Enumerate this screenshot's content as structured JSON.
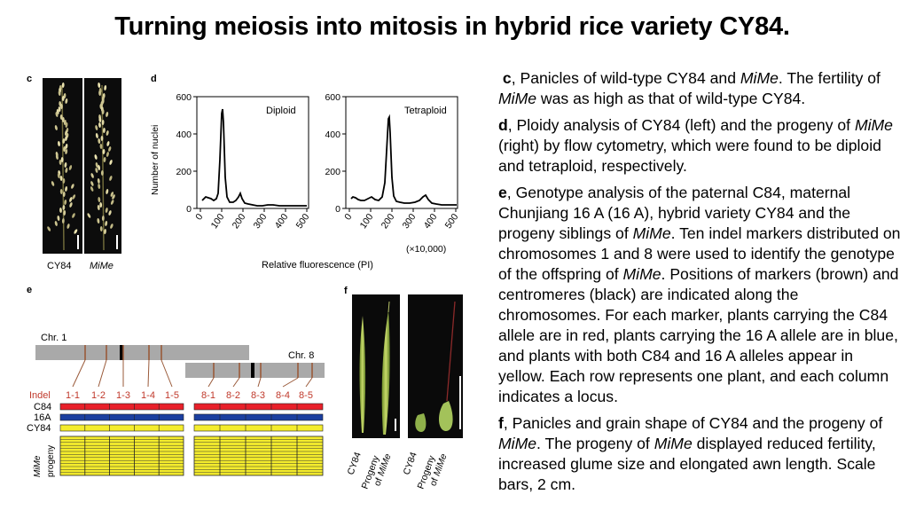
{
  "title": "Turning meiosis into mitosis in hybrid rice variety CY84.",
  "panel_c": {
    "letter": "c",
    "labels": [
      "CY84",
      "MiMe"
    ]
  },
  "panel_d": {
    "letter": "d",
    "ylabel": "Number of nuclei",
    "xlabel": "Relative fluorescence (PI)",
    "x_unit": "(×10,000)",
    "left_title": "Diploid",
    "right_title": "Tetraploid",
    "y_ticks": [
      "0",
      "200",
      "400",
      "600"
    ],
    "x_ticks": [
      "0",
      "100",
      "200",
      "300",
      "400",
      "500"
    ]
  },
  "panel_e": {
    "letter": "e",
    "chr1": "Chr. 1",
    "chr8": "Chr. 8",
    "indel_label": "Indel",
    "markers_chr1": [
      "1-1",
      "1-2",
      "1-3",
      "1-4",
      "1-5"
    ],
    "markers_chr8": [
      "8-1",
      "8-2",
      "8-3",
      "8-4",
      "8-5"
    ],
    "rows": [
      "C84",
      "16A",
      "CY84"
    ],
    "progeny_label_1": "MiMe",
    "progeny_label_2": "progeny",
    "colors": {
      "c84": "#e8202a",
      "a16": "#1b3fa0",
      "cy84": "#f4ec2c",
      "marker": "#9a5a3a",
      "chromosome": "#a9a9a9"
    }
  },
  "panel_f": {
    "letter": "f",
    "labels": [
      {
        "l1": "CY84",
        "l2": "",
        "l3": ""
      },
      {
        "l1": "Progeny",
        "l2": "of",
        "l3": "MiMe"
      },
      {
        "l1": "CY84",
        "l2": "",
        "l3": ""
      },
      {
        "l1": "Progeny",
        "l2": "of",
        "l3": "MiMe"
      }
    ]
  },
  "caption": {
    "c": {
      "letter": "c",
      "t1": ", Panicles of wild-type CY84 and ",
      "i1": "MiMe",
      "t2": ". The fertility of ",
      "i2": "MiMe",
      "t3": " was as high as that of wild-type CY84."
    },
    "d": {
      "letter": "d",
      "t1": ", Ploidy analysis of CY84 (left) and the progeny of ",
      "i1": "MiMe",
      "t2": " (right) by flow cytometry, which were found to be diploid and tetraploid, respectively."
    },
    "e": {
      "letter": "e",
      "t1": ", Genotype analysis of the paternal C84, maternal Chunjiang 16 A (16 A), hybrid variety CY84 and the progeny siblings of ",
      "i1": "MiMe",
      "t2": ". Ten indel markers distributed on chromosomes 1 and 8 were used to identify the genotype of the offspring of ",
      "i2": "MiMe",
      "t3": ". Positions of markers (brown) and centromeres (black) are indicated along the chromosomes. For each marker, plants carrying the C84 allele are in red, plants carrying the 16 A allele are in blue, and plants with both C84 and 16 A alleles appear in yellow. Each row represents one plant, and each column indicates a locus."
    },
    "f": {
      "letter": "f",
      "t1": ", Panicles and grain shape of CY84 and the progeny of ",
      "i1": "MiMe",
      "t2": ". The progeny of ",
      "i2": "MiMe",
      "t3": " displayed reduced fertility, increased glume size and elongated awn length. Scale bars, 2 cm."
    }
  }
}
